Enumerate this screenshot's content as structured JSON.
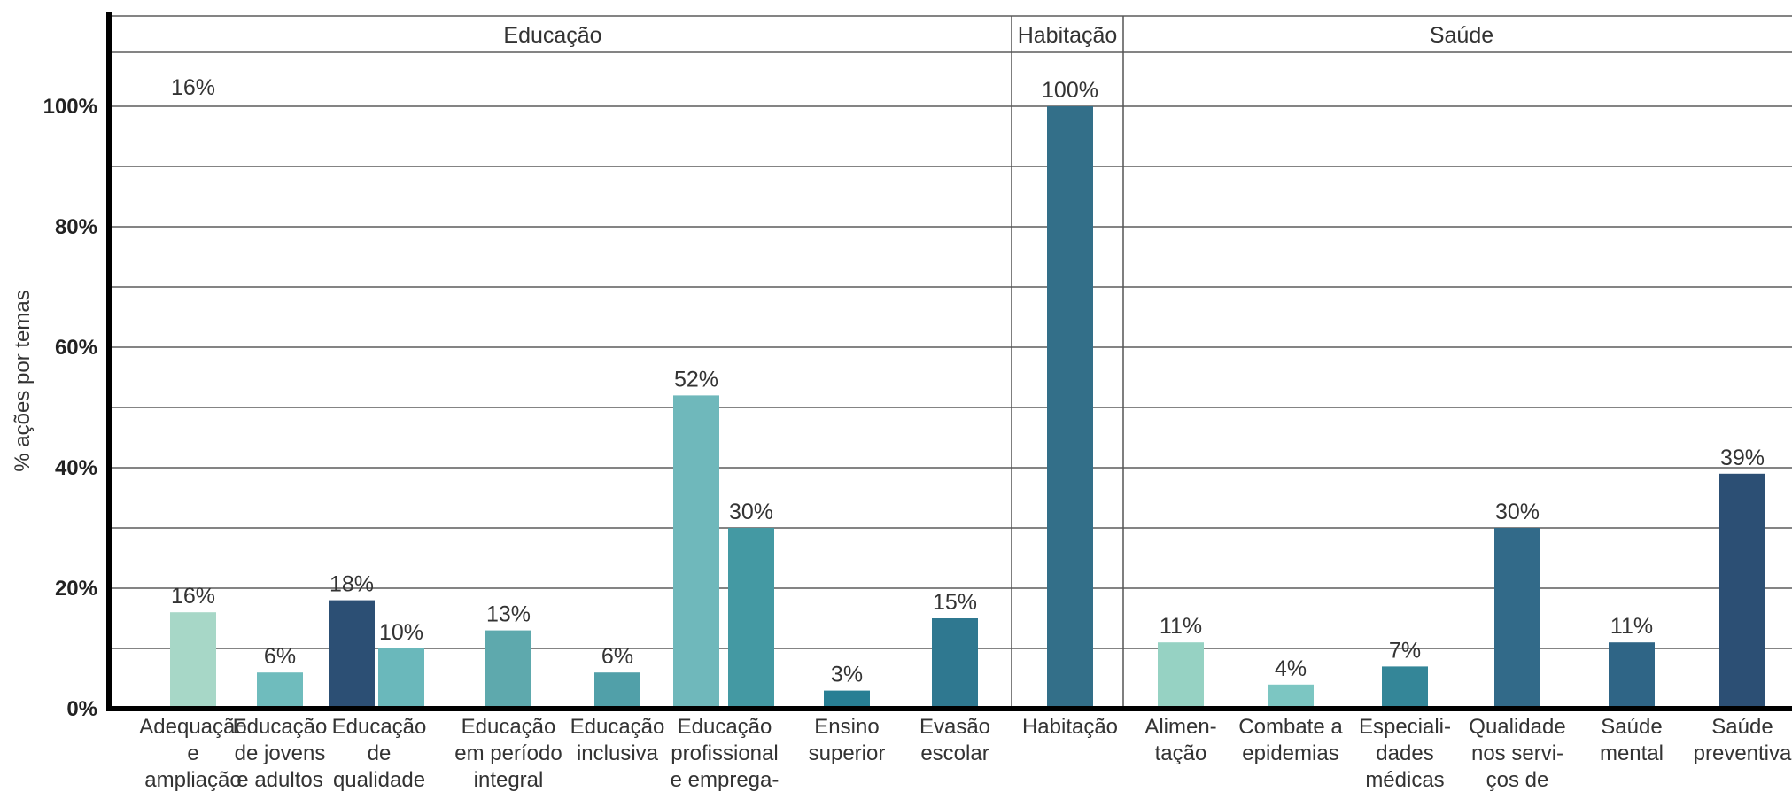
{
  "chart_data": {
    "type": "bar",
    "ylabel": "% ações por temas",
    "ylim": [
      0,
      100
    ],
    "yticks": [
      "0%",
      "20%",
      "40%",
      "60%",
      "80%",
      "100%"
    ],
    "grid": true,
    "groups": [
      "Educação",
      "Habitação",
      "Saúde"
    ],
    "stray_label": "16%",
    "categories": [
      {
        "group": "Educação",
        "label": [
          "Adequação",
          "e",
          "ampliação"
        ],
        "value": 16,
        "value_label": "16%",
        "color": "#a7d7c7"
      },
      {
        "group": "Educação",
        "label": [
          "Educação",
          "de jovens",
          "e adultos"
        ],
        "value": 6,
        "value_label": "6%",
        "color": "#6fbcbd"
      },
      {
        "group": "Educação",
        "label": [
          "Educação",
          "de",
          "qualidade"
        ],
        "values": [
          18,
          10
        ],
        "value_labels": [
          "18%",
          "10%"
        ],
        "colors": [
          "#2c4f74",
          "#6ab8bb"
        ]
      },
      {
        "group": "Educação",
        "label": [
          "Educação",
          "em período",
          "integral"
        ],
        "value": 13,
        "value_label": "13%",
        "color": "#5ea9ad"
      },
      {
        "group": "Educação",
        "label": [
          "Educação",
          "inclusiva"
        ],
        "value": 6,
        "value_label": "6%",
        "color": "#51a0a9"
      },
      {
        "group": "Educação",
        "label": [
          "Educação",
          "profissional",
          "e emprega-"
        ],
        "values": [
          52,
          30
        ],
        "value_labels": [
          "52%",
          "30%"
        ],
        "colors": [
          "#6fb8bb",
          "#4499a3"
        ]
      },
      {
        "group": "Educação",
        "label": [
          "Ensino",
          "superior"
        ],
        "value": 3,
        "value_label": "3%",
        "color": "#287f94"
      },
      {
        "group": "Educação",
        "label": [
          "Evasão",
          "escolar"
        ],
        "value": 15,
        "value_label": "15%",
        "color": "#2f7890"
      },
      {
        "group": "Habitação",
        "label": [
          "Habitação"
        ],
        "value": 100,
        "value_label": "100%",
        "color": "#336f89"
      },
      {
        "group": "Saúde",
        "label": [
          "Alimen-",
          "tação"
        ],
        "value": 11,
        "value_label": "11%",
        "color": "#96d2c3"
      },
      {
        "group": "Saúde",
        "label": [
          "Combate a",
          "epidemias"
        ],
        "value": 4,
        "value_label": "4%",
        "color": "#7cc6c2"
      },
      {
        "group": "Saúde",
        "label": [
          "Especiali-",
          "dades",
          "médicas"
        ],
        "value": 7,
        "value_label": "7%",
        "color": "#348698"
      },
      {
        "group": "Saúde",
        "label": [
          "Qualidade",
          "nos servi-",
          "ços de"
        ],
        "value": 30,
        "value_label": "30%",
        "color": "#326a89"
      },
      {
        "group": "Saúde",
        "label": [
          "Saúde",
          "mental"
        ],
        "value": 11,
        "value_label": "11%",
        "color": "#2f6586"
      },
      {
        "group": "Saúde",
        "label": [
          "Saúde",
          "preventiva"
        ],
        "value": 39,
        "value_label": "39%",
        "color": "#2c4f74"
      }
    ]
  }
}
